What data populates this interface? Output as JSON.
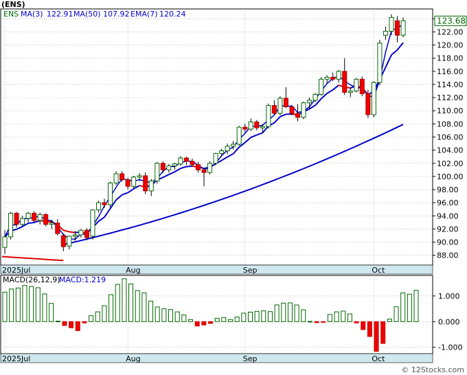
{
  "chart_data": [
    {
      "type": "candlestick",
      "title": "(ENS)",
      "ticker_label": "ENS",
      "indicators": [
        {
          "name": "MA(3)",
          "value": "122.91",
          "color": "#0000cc"
        },
        {
          "name": "MA(50)",
          "value": "107.92",
          "color": "#0000cc"
        },
        {
          "name": "EMA(7)",
          "value": "120.24",
          "color": "#0000cc"
        }
      ],
      "last_price": "123.68",
      "ylim": [
        86.5,
        125.5
      ],
      "y_ticks": [
        "88.00",
        "90.00",
        "92.00",
        "94.00",
        "96.00",
        "98.00",
        "100.00",
        "102.00",
        "104.00",
        "106.00",
        "108.00",
        "110.00",
        "112.00",
        "114.00",
        "116.00",
        "118.00",
        "120.00",
        "122.00",
        "124.00"
      ],
      "x_labels": [
        {
          "text": "2025Jul",
          "bar": 0
        },
        {
          "text": "Aug",
          "bar": 21
        },
        {
          "text": "Sep",
          "bar": 41
        },
        {
          "text": "Oct",
          "bar": 63
        }
      ],
      "bars": [
        [
          89.2,
          91.8,
          88.2,
          90.8
        ],
        [
          90.8,
          94.6,
          90.4,
          94.4
        ],
        [
          94.4,
          94.6,
          92.2,
          92.7
        ],
        [
          92.7,
          94.0,
          92.4,
          93.6
        ],
        [
          93.6,
          94.6,
          93.0,
          94.4
        ],
        [
          94.4,
          94.7,
          93.0,
          93.3
        ],
        [
          93.3,
          94.5,
          92.7,
          94.2
        ],
        [
          94.2,
          94.4,
          92.4,
          92.7
        ],
        [
          92.7,
          93.4,
          92.0,
          92.9
        ],
        [
          92.9,
          93.5,
          91.0,
          91.3
        ],
        [
          91.0,
          91.3,
          88.6,
          89.3
        ],
        [
          89.4,
          91.0,
          88.9,
          90.9
        ],
        [
          90.9,
          91.7,
          90.2,
          91.1
        ],
        [
          91.1,
          92.0,
          90.7,
          91.8
        ],
        [
          91.8,
          92.1,
          90.3,
          90.7
        ],
        [
          90.9,
          95.0,
          90.4,
          94.9
        ],
        [
          94.9,
          96.3,
          94.5,
          96.0
        ],
        [
          96.0,
          96.6,
          95.2,
          95.7
        ],
        [
          95.7,
          99.2,
          95.3,
          99.0
        ],
        [
          99.0,
          100.8,
          98.7,
          100.4
        ],
        [
          100.4,
          100.8,
          99.2,
          99.5
        ],
        [
          99.5,
          99.8,
          98.0,
          98.5
        ],
        [
          98.5,
          100.1,
          98.2,
          99.9
        ],
        [
          99.9,
          100.5,
          99.3,
          100.1
        ],
        [
          100.1,
          100.6,
          97.3,
          97.8
        ],
        [
          97.8,
          99.6,
          97.0,
          99.3
        ],
        [
          99.3,
          102.2,
          98.9,
          102.0
        ],
        [
          102.0,
          102.3,
          100.5,
          101.0
        ],
        [
          101.0,
          101.9,
          100.6,
          101.6
        ],
        [
          101.6,
          102.1,
          101.0,
          101.9
        ],
        [
          101.9,
          103.1,
          101.6,
          102.8
        ],
        [
          102.8,
          103.0,
          101.7,
          102.3
        ],
        [
          102.3,
          102.7,
          101.5,
          101.8
        ],
        [
          101.8,
          102.2,
          100.6,
          101.0
        ],
        [
          101.0,
          101.3,
          98.5,
          100.6
        ],
        [
          100.6,
          102.3,
          100.3,
          102.0
        ],
        [
          102.0,
          103.6,
          101.7,
          103.5
        ],
        [
          103.5,
          104.2,
          103.0,
          103.9
        ],
        [
          103.9,
          105.0,
          103.4,
          104.6
        ],
        [
          104.6,
          105.4,
          104.1,
          104.9
        ],
        [
          104.9,
          107.7,
          104.7,
          107.5
        ],
        [
          107.5,
          108.0,
          106.7,
          107.2
        ],
        [
          107.2,
          108.8,
          106.9,
          108.3
        ],
        [
          108.3,
          108.6,
          107.0,
          107.4
        ],
        [
          107.4,
          108.0,
          106.6,
          107.6
        ],
        [
          107.6,
          111.1,
          107.3,
          110.8
        ],
        [
          110.8,
          111.6,
          109.4,
          109.6
        ],
        [
          109.6,
          112.2,
          109.3,
          111.9
        ],
        [
          111.9,
          113.6,
          110.4,
          110.6
        ],
        [
          110.6,
          110.9,
          109.3,
          109.6
        ],
        [
          109.6,
          111.0,
          108.4,
          109.0
        ],
        [
          109.0,
          111.4,
          108.7,
          111.2
        ],
        [
          111.2,
          112.0,
          110.2,
          111.6
        ],
        [
          111.6,
          112.7,
          111.3,
          112.5
        ],
        [
          112.5,
          115.1,
          112.3,
          114.8
        ],
        [
          114.8,
          115.4,
          114.2,
          115.1
        ],
        [
          115.1,
          115.8,
          114.5,
          114.8
        ],
        [
          114.8,
          116.2,
          114.3,
          116.0
        ],
        [
          116.0,
          118.0,
          112.4,
          112.8
        ],
        [
          112.8,
          113.5,
          112.1,
          113.0
        ],
        [
          113.0,
          115.0,
          112.8,
          114.8
        ],
        [
          114.8,
          115.2,
          112.2,
          112.6
        ],
        [
          112.6,
          113.2,
          108.9,
          109.4
        ],
        [
          109.4,
          114.5,
          109.0,
          114.3
        ],
        [
          114.3,
          120.8,
          113.9,
          120.3
        ],
        [
          121.5,
          122.8,
          120.8,
          122.1
        ],
        [
          122.1,
          124.7,
          121.5,
          124.2
        ],
        [
          123.7,
          124.4,
          120.4,
          121.5
        ],
        [
          121.5,
          124.2,
          121.2,
          123.7
        ]
      ],
      "ma50_start": 87.8,
      "ma50_end": 107.92,
      "macd": {
        "label": "MACD(26,12,9)",
        "value_label": "MACD:1.219",
        "ylim": [
          -1.25,
          1.8
        ],
        "y_ticks": [
          "1.000",
          "0.000",
          "-1.000"
        ],
        "values": [
          1.15,
          1.27,
          1.31,
          1.41,
          1.37,
          1.32,
          1.08,
          0.71,
          0.02,
          -0.15,
          -0.24,
          -0.35,
          -0.05,
          0.23,
          0.38,
          0.62,
          1.05,
          1.45,
          1.67,
          1.47,
          1.21,
          1.12,
          0.8,
          0.57,
          0.5,
          0.47,
          0.38,
          0.26,
          0.08,
          -0.17,
          -0.13,
          -0.07,
          0.13,
          0.16,
          0.08,
          0.18,
          0.33,
          0.37,
          0.4,
          0.42,
          0.39,
          0.65,
          0.72,
          0.73,
          0.65,
          0.46,
          0.01,
          -0.04,
          -0.01,
          0.28,
          0.38,
          0.41,
          0.3,
          -0.05,
          -0.31,
          -0.58,
          -1.16,
          -0.85,
          0.1,
          0.58,
          1.12,
          1.07,
          1.22
        ]
      }
    }
  ],
  "watermark": "© 12Stocks.com"
}
